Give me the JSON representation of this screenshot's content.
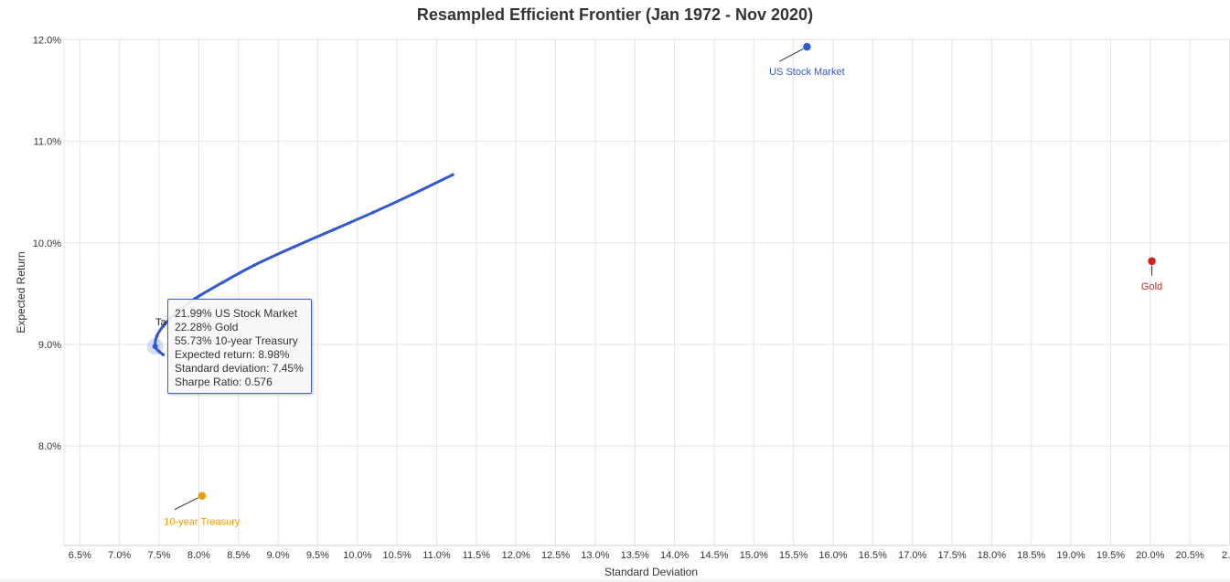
{
  "chart_data": {
    "type": "scatter",
    "title": "Resampled Efficient Frontier (Jan 1972 - Nov 2020)",
    "xlabel": "Standard Deviation",
    "ylabel": "Expected Return",
    "xlim": [
      6.3,
      21.0
    ],
    "ylim": [
      7.0,
      12.0
    ],
    "x_tick_labels": [
      "6.5%",
      "7.0%",
      "7.5%",
      "8.0%",
      "8.5%",
      "9.0%",
      "9.5%",
      "10.0%",
      "10.5%",
      "11.0%",
      "11.5%",
      "12.0%",
      "12.5%",
      "13.0%",
      "13.5%",
      "14.0%",
      "14.5%",
      "15.0%",
      "15.5%",
      "16.0%",
      "16.5%",
      "17.0%",
      "17.5%",
      "18.0%",
      "18.5%",
      "19.0%",
      "19.5%",
      "20.0%",
      "20.5%",
      "2…"
    ],
    "y_tick_labels": [
      "8.0%",
      "9.0%",
      "10.0%",
      "11.0%",
      "12.0%"
    ],
    "grid": true,
    "series": [
      {
        "name": "Efficient Frontier",
        "color": "#3358cf",
        "x": [
          7.55,
          7.5,
          7.45,
          7.47,
          7.55,
          7.7,
          7.95,
          8.3,
          8.7,
          9.2,
          9.7,
          10.2,
          10.7,
          11.2
        ],
        "y": [
          8.9,
          8.93,
          8.98,
          9.08,
          9.18,
          9.3,
          9.45,
          9.61,
          9.78,
          9.96,
          10.13,
          10.3,
          10.48,
          10.67
        ]
      }
    ],
    "assets": [
      {
        "name": "US Stock Market",
        "x": 15.67,
        "y": 11.93,
        "color": "#3358cf"
      },
      {
        "name": "Gold",
        "x": 20.02,
        "y": 9.82,
        "color": "#d42020"
      },
      {
        "name": "10-year Treasury",
        "x": 8.04,
        "y": 7.51,
        "color": "#f29b05"
      }
    ],
    "partial_label": "Ta",
    "tooltip": {
      "lines": [
        "21.99% US Stock Market",
        "22.28% Gold",
        "55.73% 10-year Treasury",
        "Expected return: 8.98%",
        "Standard deviation: 7.45%",
        "Sharpe Ratio: 0.576"
      ],
      "point": {
        "x": 7.45,
        "y": 8.98
      }
    }
  }
}
